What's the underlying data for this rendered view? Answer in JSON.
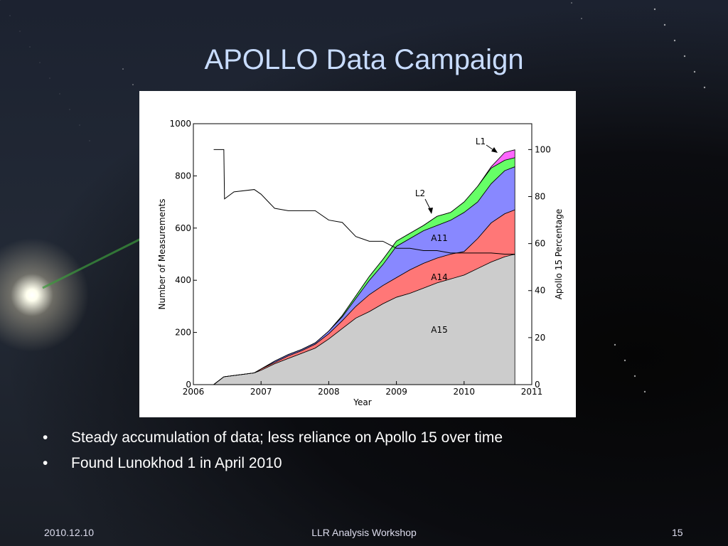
{
  "slide": {
    "title": "APOLLO Data Campaign",
    "bullets": [
      "Steady accumulation of data; less reliance on Apollo 15 over time",
      "Found Lunokhod 1 in April 2010"
    ],
    "footer": {
      "date": "2010.12.10",
      "event": "LLR Analysis Workshop",
      "page": "15"
    }
  },
  "chart_data": {
    "type": "stacked-area",
    "x_label": "Year",
    "y_label": "Number of Measurements",
    "y2_label": "Apollo 15 Percentage",
    "xlim": [
      2006,
      2011
    ],
    "xticks": [
      2006,
      2007,
      2008,
      2009,
      2010,
      2011
    ],
    "ylim": [
      0,
      1000
    ],
    "yticks": [
      0,
      200,
      400,
      600,
      800,
      1000
    ],
    "y2lim": [
      0,
      111
    ],
    "y2ticks": [
      0,
      20,
      40,
      60,
      80,
      100
    ],
    "x": [
      2006.3,
      2006.45,
      2006.9,
      2007.0,
      2007.2,
      2007.4,
      2007.6,
      2007.8,
      2008.0,
      2008.2,
      2008.4,
      2008.6,
      2008.8,
      2009.0,
      2009.2,
      2009.4,
      2009.6,
      2009.8,
      2010.0,
      2010.2,
      2010.4,
      2010.6,
      2010.75
    ],
    "series": [
      {
        "name": "A15",
        "color": "#cccccc",
        "values": [
          0,
          30,
          45,
          55,
          80,
          100,
          120,
          140,
          175,
          215,
          255,
          280,
          310,
          335,
          350,
          370,
          390,
          405,
          420,
          445,
          470,
          490,
          500
        ]
      },
      {
        "name": "A14",
        "color": "#ff7777",
        "values": [
          0,
          0,
          0,
          5,
          5,
          10,
          10,
          15,
          20,
          30,
          45,
          65,
          70,
          75,
          90,
          95,
          95,
          95,
          90,
          115,
          150,
          165,
          170
        ]
      },
      {
        "name": "A11",
        "color": "#8888ff",
        "values": [
          0,
          0,
          0,
          0,
          5,
          5,
          5,
          5,
          10,
          15,
          30,
          55,
          80,
          120,
          120,
          125,
          125,
          130,
          150,
          140,
          150,
          165,
          165
        ]
      },
      {
        "name": "L2",
        "color": "#66ff66",
        "values": [
          0,
          0,
          0,
          0,
          0,
          0,
          0,
          0,
          0,
          5,
          10,
          15,
          20,
          20,
          20,
          20,
          35,
          30,
          40,
          60,
          60,
          40,
          35
        ]
      },
      {
        "name": "L1",
        "color": "#ff66ff",
        "values": [
          0,
          0,
          0,
          0,
          0,
          0,
          0,
          0,
          0,
          0,
          0,
          0,
          0,
          0,
          0,
          0,
          0,
          0,
          0,
          0,
          5,
          30,
          30
        ]
      }
    ],
    "percentage": {
      "color": "#000000",
      "axis": "y2",
      "x": [
        2006.3,
        2006.45,
        2006.46,
        2006.6,
        2006.9,
        2007.0,
        2007.1,
        2007.2,
        2007.4,
        2007.6,
        2007.8,
        2008.0,
        2008.2,
        2008.4,
        2008.6,
        2008.8,
        2009.0,
        2009.2,
        2009.4,
        2009.6,
        2009.8,
        2010.0,
        2010.2,
        2010.4,
        2010.6,
        2010.75
      ],
      "values": [
        100,
        100,
        79,
        82,
        83,
        81,
        78,
        75,
        74,
        74,
        74,
        70,
        69,
        63,
        61,
        61,
        58,
        58,
        57,
        57,
        56,
        56,
        56,
        56,
        55.5,
        55.5
      ]
    }
  }
}
